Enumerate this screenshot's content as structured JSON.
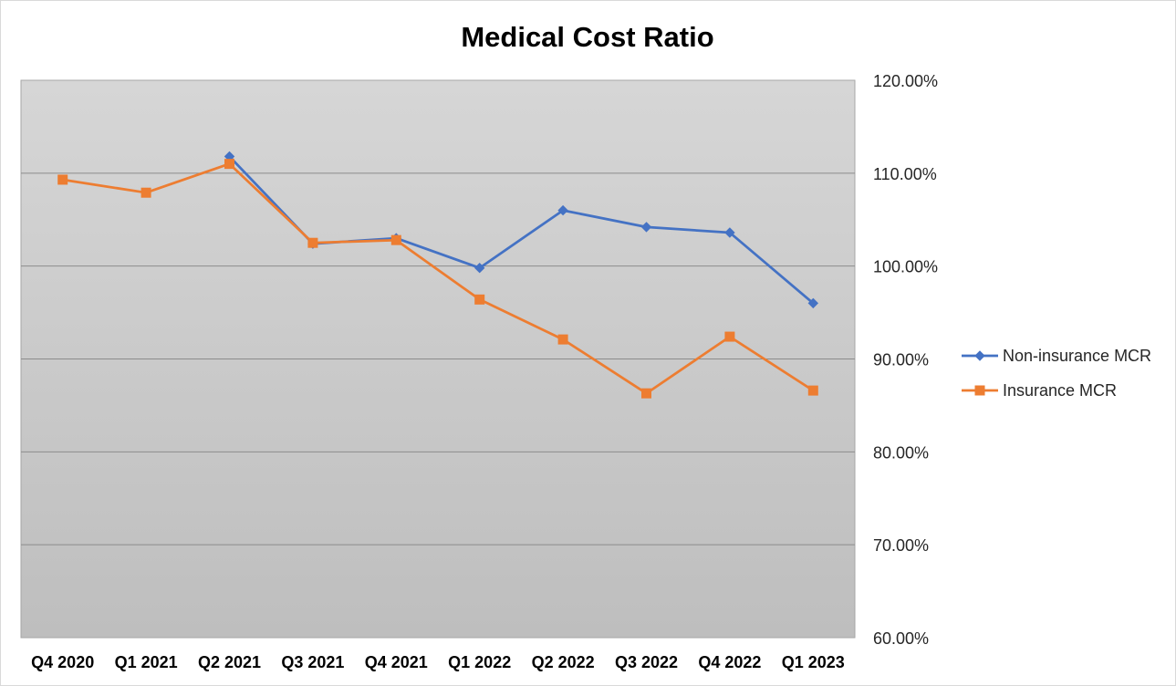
{
  "chart_data": {
    "type": "line",
    "title": "Medical Cost Ratio",
    "xlabel": "",
    "ylabel": "",
    "categories": [
      "Q4 2020",
      "Q1 2021",
      "Q2 2021",
      "Q3 2021",
      "Q4 2021",
      "Q1 2022",
      "Q2 2022",
      "Q3 2022",
      "Q4 2022",
      "Q1 2023"
    ],
    "y_ticks": [
      "60.00%",
      "70.00%",
      "80.00%",
      "90.00%",
      "100.00%",
      "110.00%",
      "120.00%"
    ],
    "ylim": [
      60,
      120
    ],
    "y_axis_side": "right",
    "grid": true,
    "legend_position": "right",
    "series": [
      {
        "name": "Non-insurance MCR",
        "color": "#4472C4",
        "marker": "diamond",
        "values": [
          null,
          null,
          111.8,
          102.4,
          103.0,
          99.8,
          106.0,
          104.2,
          103.6,
          96.0
        ]
      },
      {
        "name": "Insurance MCR",
        "color": "#ED7D31",
        "marker": "square",
        "values": [
          109.3,
          107.9,
          111.0,
          102.5,
          102.8,
          96.4,
          92.1,
          86.3,
          92.4,
          86.6
        ]
      }
    ]
  }
}
